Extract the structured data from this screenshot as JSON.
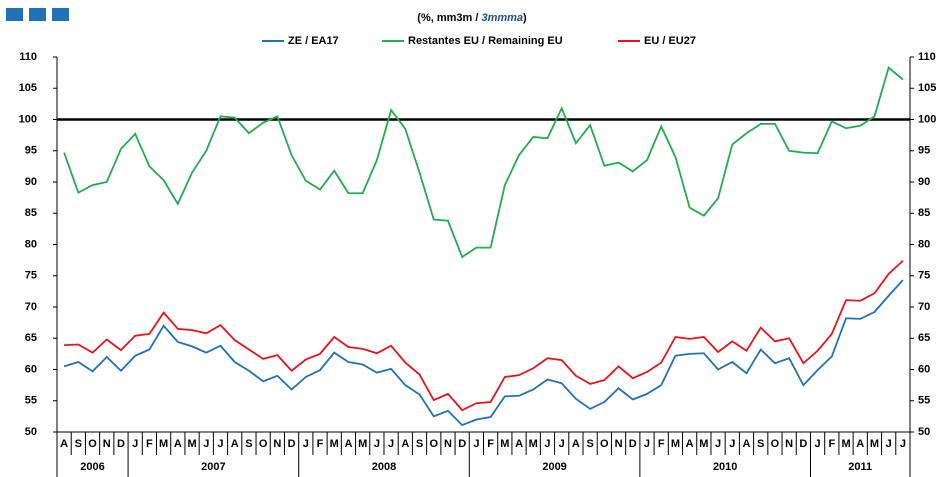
{
  "chart_data": {
    "type": "line",
    "title_parts": [
      "(%, mm3m / ",
      "3mmma",
      ")"
    ],
    "categories": [
      "A",
      "S",
      "O",
      "N",
      "D",
      "J",
      "F",
      "M",
      "A",
      "M",
      "J",
      "J",
      "A",
      "S",
      "O",
      "N",
      "D",
      "J",
      "F",
      "M",
      "A",
      "M",
      "J",
      "J",
      "A",
      "S",
      "O",
      "N",
      "D",
      "J",
      "F",
      "M",
      "A",
      "M",
      "J",
      "J",
      "A",
      "S",
      "O",
      "N",
      "D",
      "J",
      "F",
      "M",
      "A",
      "M",
      "J",
      "J",
      "A",
      "S",
      "O",
      "N",
      "D",
      "J",
      "F",
      "M",
      "A",
      "M",
      "J",
      "J"
    ],
    "years": [
      "2006",
      "2007",
      "2008",
      "2009",
      "2010",
      "2011"
    ],
    "series": [
      {
        "name": "ZE / EA17",
        "color": "#1f72b8",
        "values": [
          60.5,
          61.2,
          59.7,
          62,
          59.8,
          62.2,
          63.2,
          67,
          64.4,
          63.7,
          62.7,
          63.8,
          61.2,
          59.8,
          58.1,
          59,
          56.8,
          58.8,
          59.9,
          62.7,
          61.2,
          60.8,
          59.5,
          60.1,
          57.5,
          56,
          52.5,
          53.4,
          51.1,
          52,
          52.4,
          55.7,
          55.8,
          56.8,
          58.4,
          57.8,
          55.3,
          53.7,
          54.8,
          57,
          55.2,
          56.1,
          57.5,
          62.2,
          62.5,
          62.6,
          60,
          61.2,
          59.4,
          63.2,
          61,
          61.8,
          57.5,
          59.9,
          62.1,
          68.2,
          68.1,
          69.2,
          71.8,
          74.3
        ]
      },
      {
        "name": "Restantes EU / Remaining EU",
        "color": "#1fae4b",
        "values": [
          94.7,
          88.3,
          89.5,
          90,
          95.3,
          97.7,
          92.5,
          90.3,
          86.5,
          91.5,
          95,
          100.5,
          100.3,
          97.8,
          99.5,
          100.5,
          94.3,
          90.2,
          88.8,
          91.8,
          88.2,
          88.2,
          93.5,
          101.5,
          98.5,
          91.5,
          84,
          83.8,
          78,
          79.5,
          79.5,
          89.5,
          94.3,
          97.2,
          97,
          101.8,
          96.2,
          99.1,
          92.6,
          93.1,
          91.7,
          93.5,
          98.9,
          94,
          85.9,
          84.6,
          87.4,
          96,
          97.8,
          99.3,
          99.3,
          95,
          94.7,
          94.6,
          99.7,
          98.6,
          99,
          100.5,
          108.3,
          106.4
        ]
      },
      {
        "name": "EU / EU27",
        "color": "#e8141b",
        "values": [
          63.9,
          64,
          62.7,
          64.8,
          63.1,
          65.4,
          65.7,
          69.1,
          66.5,
          66.3,
          65.8,
          67.1,
          64.7,
          63.2,
          61.7,
          62.3,
          59.8,
          61.6,
          62.5,
          65.2,
          63.6,
          63.3,
          62.6,
          63.8,
          61.1,
          59.2,
          55.1,
          56.1,
          53.5,
          54.6,
          54.8,
          58.8,
          59.1,
          60.2,
          61.8,
          61.5,
          59,
          57.7,
          58.3,
          60.5,
          58.6,
          59.6,
          61.1,
          65.2,
          64.9,
          65.2,
          62.8,
          64.5,
          63,
          66.7,
          64.5,
          65,
          61,
          63,
          65.7,
          71.1,
          71,
          72.2,
          75.3,
          77.4
        ]
      }
    ],
    "reference_line": 100,
    "ylim": [
      50,
      110
    ],
    "yticks": [
      50,
      55,
      60,
      65,
      70,
      75,
      80,
      85,
      90,
      95,
      100,
      105,
      110
    ],
    "y2lim": [
      50,
      110
    ],
    "y2ticks": [
      50,
      55,
      60,
      65,
      70,
      75,
      80,
      85,
      90,
      95,
      100,
      105,
      110
    ]
  }
}
